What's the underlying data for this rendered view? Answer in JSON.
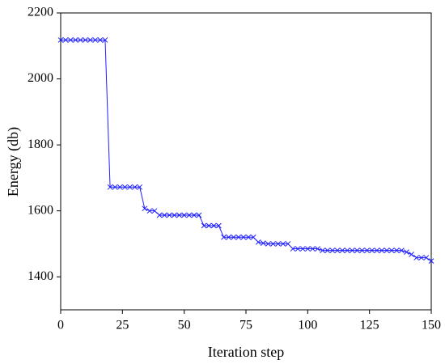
{
  "chart_data": {
    "type": "line",
    "x_label": "Iteration step",
    "y_label": "Energy (db)",
    "x": [
      0,
      2,
      4,
      6,
      8,
      10,
      12,
      14,
      16,
      18,
      20,
      22,
      24,
      26,
      28,
      30,
      32,
      34,
      36,
      38,
      40,
      42,
      44,
      46,
      48,
      50,
      52,
      54,
      56,
      58,
      60,
      62,
      64,
      66,
      68,
      70,
      72,
      74,
      76,
      78,
      80,
      82,
      84,
      86,
      88,
      90,
      92,
      94,
      96,
      98,
      100,
      102,
      104,
      106,
      108,
      110,
      112,
      114,
      116,
      118,
      120,
      122,
      124,
      126,
      128,
      130,
      132,
      134,
      136,
      138,
      140,
      142,
      144,
      146,
      148,
      150
    ],
    "series": [
      {
        "name": "Energy",
        "color": "#1f1fff",
        "values": [
          2118,
          2118,
          2118,
          2118,
          2118,
          2118,
          2118,
          2118,
          2118,
          2118,
          1672,
          1672,
          1672,
          1672,
          1672,
          1672,
          1672,
          1607,
          1600,
          1600,
          1587,
          1587,
          1587,
          1587,
          1587,
          1587,
          1587,
          1587,
          1587,
          1555,
          1555,
          1555,
          1555,
          1520,
          1520,
          1520,
          1520,
          1520,
          1520,
          1520,
          1505,
          1502,
          1500,
          1500,
          1500,
          1500,
          1500,
          1485,
          1485,
          1485,
          1485,
          1485,
          1485,
          1480,
          1480,
          1480,
          1480,
          1480,
          1480,
          1480,
          1480,
          1480,
          1480,
          1480,
          1480,
          1480,
          1480,
          1480,
          1480,
          1480,
          1475,
          1468,
          1458,
          1458,
          1458,
          1448
        ]
      }
    ],
    "xlim": [
      0,
      150
    ],
    "xticks": [
      0,
      25,
      50,
      75,
      100,
      125,
      150
    ],
    "ylim": [
      1300,
      2200
    ],
    "yticks": [
      1400,
      1600,
      1800,
      2000,
      2200
    ]
  }
}
